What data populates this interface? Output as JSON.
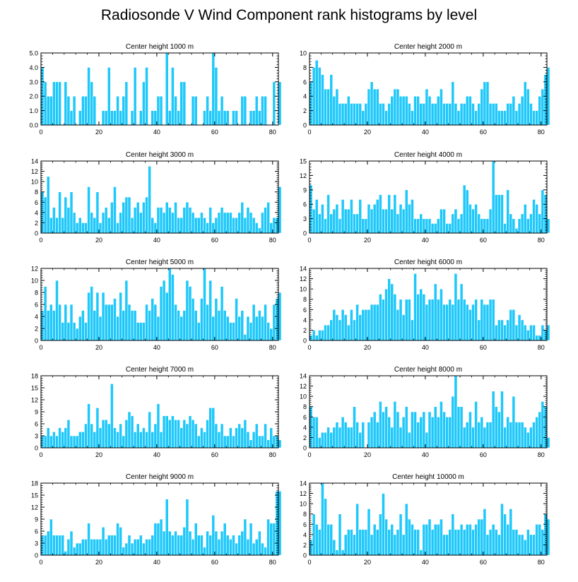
{
  "figure_title": "Radiosonde V Wind Component rank histograms by level",
  "colors": {
    "bar": "#1EC8FA",
    "bar_stroke": "#ffffff",
    "axis": "#000000"
  },
  "chart_data": [
    {
      "type": "bar",
      "title": "Center height 1000 m",
      "ylim": [
        0,
        5
      ],
      "yticks": [
        0,
        1,
        2,
        3,
        4,
        5
      ],
      "ytick_labels": [
        "0.0",
        "1.0",
        "2.0",
        "3.0",
        "4.0",
        "5.0"
      ],
      "xlim": [
        0,
        82
      ],
      "xticks": [
        0,
        20,
        40,
        60,
        80
      ],
      "xtick_labels": [
        "0",
        "20",
        "40",
        "60",
        "80"
      ],
      "values": [
        4,
        3,
        2,
        2,
        3,
        3,
        3,
        0,
        3,
        2,
        1,
        2,
        0,
        1,
        2,
        2,
        4,
        3,
        2,
        0,
        0,
        1,
        1,
        4,
        1,
        1,
        2,
        1,
        2,
        3,
        0,
        1,
        4,
        0,
        1,
        3,
        4,
        0,
        1,
        1,
        2,
        2,
        0,
        5,
        1,
        4,
        2,
        1,
        3,
        3,
        0,
        0,
        2,
        2,
        0,
        0,
        1,
        2,
        1,
        5,
        4,
        1,
        2,
        1,
        1,
        0,
        1,
        1,
        0,
        2,
        2,
        0,
        1,
        1,
        2,
        1,
        2,
        2,
        0,
        0,
        3,
        0,
        3
      ]
    },
    {
      "type": "bar",
      "title": "Center height 2000 m",
      "ylim": [
        0,
        10
      ],
      "yticks": [
        0,
        2,
        4,
        6,
        8,
        10
      ],
      "ytick_labels": [
        "0",
        "2",
        "4",
        "6",
        "8",
        "10"
      ],
      "xlim": [
        0,
        82
      ],
      "xticks": [
        0,
        20,
        40,
        60,
        80
      ],
      "xtick_labels": [
        "0",
        "20",
        "40",
        "60",
        "80"
      ],
      "values": [
        6,
        8,
        9,
        8,
        7,
        5,
        5,
        7,
        4,
        5,
        3,
        3,
        3,
        4,
        3,
        3,
        3,
        3,
        2,
        3,
        5,
        6,
        5,
        5,
        3,
        3,
        2,
        3,
        4,
        5,
        5,
        4,
        4,
        4,
        3,
        2,
        4,
        4,
        3,
        3,
        5,
        4,
        3,
        3,
        4,
        5,
        3,
        3,
        3,
        6,
        3,
        2,
        3,
        3,
        4,
        4,
        3,
        2,
        3,
        5,
        6,
        6,
        3,
        3,
        3,
        2,
        2,
        2,
        3,
        3,
        4,
        2,
        3,
        4,
        6,
        5,
        3,
        2,
        2,
        4,
        5,
        7,
        8
      ]
    },
    {
      "type": "bar",
      "title": "Center height 3000 m",
      "ylim": [
        0,
        14
      ],
      "yticks": [
        0,
        2,
        4,
        6,
        8,
        10,
        12,
        14
      ],
      "ytick_labels": [
        "0",
        "2",
        "4",
        "6",
        "8",
        "10",
        "12",
        "14"
      ],
      "xlim": [
        0,
        82
      ],
      "xticks": [
        0,
        20,
        40,
        60,
        80
      ],
      "xtick_labels": [
        "0",
        "20",
        "40",
        "60",
        "80"
      ],
      "values": [
        8,
        7,
        11,
        3,
        5,
        3,
        8,
        3,
        7,
        5,
        8,
        4,
        2,
        3,
        2,
        2,
        9,
        4,
        3,
        8,
        2,
        4,
        5,
        3,
        6,
        9,
        2,
        4,
        6,
        7,
        7,
        3,
        5,
        6,
        4,
        6,
        7,
        13,
        3,
        2,
        5,
        5,
        4,
        6,
        5,
        4,
        6,
        3,
        3,
        5,
        6,
        5,
        4,
        3,
        3,
        4,
        3,
        2,
        5,
        2,
        3,
        4,
        5,
        4,
        4,
        4,
        3,
        3,
        4,
        6,
        3,
        5,
        4,
        3,
        2,
        1,
        4,
        5,
        6,
        2,
        3,
        3,
        9
      ]
    },
    {
      "type": "bar",
      "title": "Center height 4000 m",
      "ylim": [
        0,
        15
      ],
      "yticks": [
        0,
        3,
        6,
        9,
        12,
        15
      ],
      "ytick_labels": [
        "0",
        "3",
        "6",
        "9",
        "12",
        "15"
      ],
      "xlim": [
        0,
        82
      ],
      "xticks": [
        0,
        20,
        40,
        60,
        80
      ],
      "xtick_labels": [
        "0",
        "20",
        "40",
        "60",
        "80"
      ],
      "values": [
        10,
        5,
        7,
        4,
        6,
        3,
        8,
        4,
        5,
        6,
        3,
        7,
        5,
        5,
        7,
        4,
        4,
        7,
        3,
        3,
        6,
        5,
        6,
        7,
        8,
        5,
        5,
        8,
        5,
        8,
        4,
        6,
        5,
        9,
        6,
        7,
        3,
        3,
        4,
        3,
        3,
        3,
        2,
        2,
        3,
        5,
        5,
        2,
        2,
        4,
        5,
        3,
        4,
        10,
        9,
        6,
        5,
        6,
        4,
        3,
        3,
        3,
        5,
        15,
        8,
        8,
        8,
        2,
        9,
        4,
        3,
        1,
        3,
        4,
        6,
        3,
        4,
        7,
        6,
        4,
        9,
        8,
        3
      ]
    },
    {
      "type": "bar",
      "title": "Center height 5000 m",
      "ylim": [
        0,
        12
      ],
      "yticks": [
        0,
        2,
        4,
        6,
        8,
        10,
        12
      ],
      "ytick_labels": [
        "0",
        "2",
        "4",
        "6",
        "8",
        "10",
        "12"
      ],
      "xlim": [
        0,
        82
      ],
      "xticks": [
        0,
        20,
        40,
        60,
        80
      ],
      "xtick_labels": [
        "0",
        "20",
        "40",
        "60",
        "80"
      ],
      "values": [
        5,
        9,
        5,
        6,
        5,
        10,
        6,
        3,
        6,
        3,
        6,
        3,
        2,
        4,
        5,
        3,
        8,
        9,
        5,
        8,
        4,
        8,
        6,
        6,
        6,
        7,
        4,
        8,
        5,
        10,
        6,
        5,
        5,
        3,
        3,
        3,
        6,
        5,
        7,
        6,
        4,
        9,
        10,
        8,
        12,
        11,
        6,
        5,
        4,
        5,
        10,
        9,
        7,
        5,
        3,
        7,
        12,
        6,
        10,
        4,
        7,
        5,
        9,
        5,
        4,
        3,
        3,
        7,
        4,
        5,
        1,
        4,
        3,
        6,
        4,
        5,
        4,
        6,
        3,
        2,
        6,
        7,
        8
      ]
    },
    {
      "type": "bar",
      "title": "Center height 6000 m",
      "ylim": [
        0,
        14
      ],
      "yticks": [
        0,
        2,
        4,
        6,
        8,
        10,
        12,
        14
      ],
      "ytick_labels": [
        "0",
        "2",
        "4",
        "6",
        "8",
        "10",
        "12",
        "14"
      ],
      "xlim": [
        0,
        82
      ],
      "xticks": [
        0,
        20,
        40,
        60,
        80
      ],
      "xtick_labels": [
        "0",
        "20",
        "40",
        "60",
        "80"
      ],
      "values": [
        1,
        2,
        1,
        2,
        2,
        3,
        3,
        4,
        6,
        5,
        4,
        6,
        5,
        3,
        6,
        4,
        7,
        5,
        6,
        6,
        6,
        7,
        7,
        7,
        9,
        8,
        10,
        12,
        11,
        9,
        6,
        8,
        5,
        8,
        8,
        4,
        13,
        9,
        10,
        9,
        7,
        8,
        8,
        11,
        8,
        10,
        7,
        7,
        8,
        7,
        13,
        8,
        11,
        8,
        7,
        6,
        7,
        8,
        4,
        8,
        7,
        7,
        8,
        8,
        3,
        4,
        4,
        3,
        4,
        6,
        6,
        3,
        5,
        4,
        3,
        2,
        3,
        3,
        1,
        1,
        3,
        2,
        3
      ]
    },
    {
      "type": "bar",
      "title": "Center height 7000 m",
      "ylim": [
        0,
        18
      ],
      "yticks": [
        0,
        3,
        6,
        9,
        12,
        15,
        18
      ],
      "ytick_labels": [
        "0",
        "3",
        "6",
        "9",
        "12",
        "15",
        "18"
      ],
      "xlim": [
        0,
        82
      ],
      "xticks": [
        0,
        20,
        40,
        60,
        80
      ],
      "xtick_labels": [
        "0",
        "20",
        "40",
        "60",
        "80"
      ],
      "values": [
        3,
        3,
        5,
        3,
        4,
        3,
        5,
        4,
        5,
        7,
        3,
        3,
        3,
        4,
        4,
        6,
        11,
        6,
        4,
        10,
        5,
        7,
        7,
        6,
        16,
        5,
        4,
        6,
        3,
        7,
        9,
        8,
        4,
        6,
        4,
        5,
        4,
        9,
        4,
        6,
        11,
        4,
        8,
        8,
        7,
        8,
        7,
        7,
        5,
        7,
        6,
        8,
        7,
        6,
        3,
        5,
        4,
        7,
        10,
        10,
        6,
        4,
        6,
        3,
        3,
        5,
        3,
        5,
        6,
        5,
        7,
        4,
        2,
        4,
        6,
        3,
        3,
        6,
        2,
        5,
        3,
        3,
        2
      ]
    },
    {
      "type": "bar",
      "title": "Center height 8000 m",
      "ylim": [
        0,
        14
      ],
      "yticks": [
        0,
        2,
        4,
        6,
        8,
        10,
        12,
        14
      ],
      "ytick_labels": [
        "0",
        "2",
        "4",
        "6",
        "8",
        "10",
        "12",
        "14"
      ],
      "xlim": [
        0,
        82
      ],
      "xticks": [
        0,
        20,
        40,
        60,
        80
      ],
      "xtick_labels": [
        "0",
        "20",
        "40",
        "60",
        "80"
      ],
      "values": [
        8,
        6,
        6,
        2,
        3,
        3,
        4,
        3,
        4,
        5,
        4,
        6,
        5,
        4,
        4,
        8,
        5,
        3,
        5,
        0,
        5,
        6,
        7,
        5,
        9,
        7,
        8,
        6,
        4,
        9,
        7,
        4,
        6,
        8,
        3,
        7,
        7,
        5,
        6,
        7,
        3,
        7,
        6,
        8,
        6,
        9,
        7,
        6,
        6,
        10,
        14,
        8,
        8,
        4,
        5,
        7,
        4,
        9,
        5,
        6,
        4,
        5,
        5,
        11,
        8,
        7,
        11,
        4,
        6,
        5,
        10,
        5,
        5,
        5,
        4,
        3,
        4,
        5,
        6,
        7,
        9,
        8,
        2
      ]
    },
    {
      "type": "bar",
      "title": "Center height 9000 m",
      "ylim": [
        0,
        18
      ],
      "yticks": [
        0,
        3,
        6,
        9,
        12,
        15,
        18
      ],
      "ytick_labels": [
        "0",
        "3",
        "6",
        "9",
        "12",
        "15",
        "18"
      ],
      "xlim": [
        0,
        82
      ],
      "xticks": [
        0,
        20,
        40,
        60,
        80
      ],
      "xtick_labels": [
        "0",
        "20",
        "40",
        "60",
        "80"
      ],
      "values": [
        5,
        5,
        6,
        9,
        5,
        5,
        5,
        5,
        1,
        4,
        6,
        2,
        3,
        3,
        4,
        4,
        8,
        4,
        4,
        4,
        4,
        7,
        4,
        5,
        5,
        5,
        8,
        7,
        2,
        3,
        5,
        3,
        4,
        4,
        5,
        3,
        4,
        4,
        5,
        8,
        8,
        9,
        6,
        14,
        6,
        5,
        6,
        5,
        5,
        7,
        14,
        6,
        4,
        8,
        5,
        5,
        2,
        6,
        5,
        10,
        6,
        4,
        6,
        8,
        5,
        4,
        5,
        3,
        5,
        6,
        9,
        4,
        8,
        3,
        4,
        6,
        3,
        2,
        9,
        8,
        8,
        16,
        16
      ]
    },
    {
      "type": "bar",
      "title": "Center height 10000 m",
      "ylim": [
        0,
        14
      ],
      "yticks": [
        0,
        2,
        4,
        6,
        8,
        10,
        12,
        14
      ],
      "ytick_labels": [
        "0",
        "2",
        "4",
        "6",
        "8",
        "10",
        "12",
        "14"
      ],
      "xlim": [
        0,
        82
      ],
      "xticks": [
        0,
        20,
        40,
        60,
        80
      ],
      "xtick_labels": [
        "0",
        "20",
        "40",
        "60",
        "80"
      ],
      "values": [
        3,
        8,
        6,
        5,
        14,
        11,
        6,
        6,
        3,
        1,
        8,
        1,
        4,
        5,
        5,
        4,
        10,
        5,
        5,
        5,
        9,
        4,
        6,
        5,
        8,
        12,
        7,
        5,
        6,
        4,
        5,
        8,
        4,
        10,
        7,
        6,
        5,
        5,
        1,
        6,
        6,
        7,
        5,
        6,
        6,
        7,
        4,
        4,
        5,
        8,
        5,
        5,
        6,
        5,
        6,
        6,
        5,
        6,
        7,
        7,
        9,
        4,
        5,
        6,
        5,
        4,
        10,
        8,
        6,
        9,
        5,
        5,
        4,
        4,
        3,
        5,
        4,
        4,
        6,
        6,
        5,
        8,
        7
      ]
    }
  ]
}
